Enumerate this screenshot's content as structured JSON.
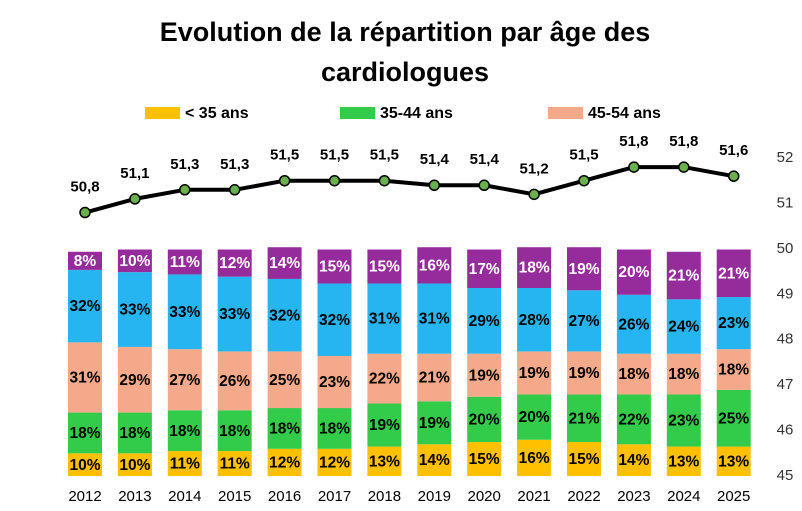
{
  "chart_data": {
    "type": "stacked-bar-line",
    "title": "Evolution de la répartition par âge des cardiologues",
    "categories": [
      "2012",
      "2013",
      "2014",
      "2015",
      "2016",
      "2017",
      "2018",
      "2019",
      "2020",
      "2021",
      "2022",
      "2023",
      "2024",
      "2025"
    ],
    "ylim": [
      0,
      100
    ],
    "y2lim": [
      45,
      52
    ],
    "y2ticks": [
      45,
      46,
      47,
      48,
      49,
      50,
      51,
      52
    ],
    "series": [
      {
        "name": "< 35 ans",
        "color": "#ffc000",
        "label_color": "#000000",
        "values": [
          10,
          10,
          11,
          11,
          12,
          12,
          13,
          14,
          15,
          16,
          15,
          14,
          13,
          13
        ],
        "value_labels": [
          "10%",
          "10%",
          "11%",
          "11%",
          "12%",
          "12%",
          "13%",
          "14%",
          "15%",
          "16%",
          "15%",
          "14%",
          "13%",
          "13%"
        ]
      },
      {
        "name": "35-44 ans",
        "color": "#33cc4a",
        "label_color": "#000000",
        "values": [
          18,
          18,
          18,
          18,
          18,
          18,
          19,
          19,
          20,
          20,
          21,
          22,
          23,
          25
        ],
        "value_labels": [
          "18%",
          "18%",
          "18%",
          "18%",
          "18%",
          "18%",
          "19%",
          "19%",
          "20%",
          "20%",
          "21%",
          "22%",
          "23%",
          "25%"
        ]
      },
      {
        "name": "45-54 ans",
        "color": "#f4aa8a",
        "label_color": "#000000",
        "values": [
          31,
          29,
          27,
          26,
          25,
          23,
          22,
          21,
          19,
          19,
          19,
          18,
          18,
          18
        ],
        "value_labels": [
          "31%",
          "29%",
          "27%",
          "26%",
          "25%",
          "23%",
          "22%",
          "21%",
          "19%",
          "19%",
          "19%",
          "18%",
          "18%",
          "18%"
        ]
      },
      {
        "name": null,
        "color": "#26b5f0",
        "label_color": "#000000",
        "values": [
          32,
          33,
          33,
          33,
          32,
          32,
          31,
          31,
          29,
          28,
          27,
          26,
          24,
          23
        ],
        "value_labels": [
          "32%",
          "33%",
          "33%",
          "33%",
          "32%",
          "32%",
          "31%",
          "31%",
          "29%",
          "28%",
          "27%",
          "26%",
          "24%",
          "23%"
        ]
      },
      {
        "name": null,
        "color": "#962c9c",
        "label_color": "#ffffff",
        "values": [
          8,
          10,
          11,
          12,
          14,
          15,
          15,
          16,
          17,
          18,
          19,
          20,
          21,
          21
        ],
        "value_labels": [
          "8%",
          "10%",
          "11%",
          "12%",
          "14%",
          "15%",
          "15%",
          "16%",
          "17%",
          "18%",
          "19%",
          "20%",
          "21%",
          "21%"
        ]
      },
      {
        "name": null,
        "type": "line",
        "axis": "y2",
        "color": "#000000",
        "marker_color": "#6ab04c",
        "values": [
          50.8,
          51.1,
          51.3,
          51.3,
          51.5,
          51.5,
          51.5,
          51.4,
          51.4,
          51.2,
          51.5,
          51.8,
          51.8,
          51.6
        ],
        "value_labels": [
          "50,8",
          "51,1",
          "51,3",
          "51,3",
          "51,5",
          "51,5",
          "51,5",
          "51,4",
          "51,4",
          "51,2",
          "51,5",
          "51,8",
          "51,8",
          "51,6"
        ]
      }
    ]
  }
}
